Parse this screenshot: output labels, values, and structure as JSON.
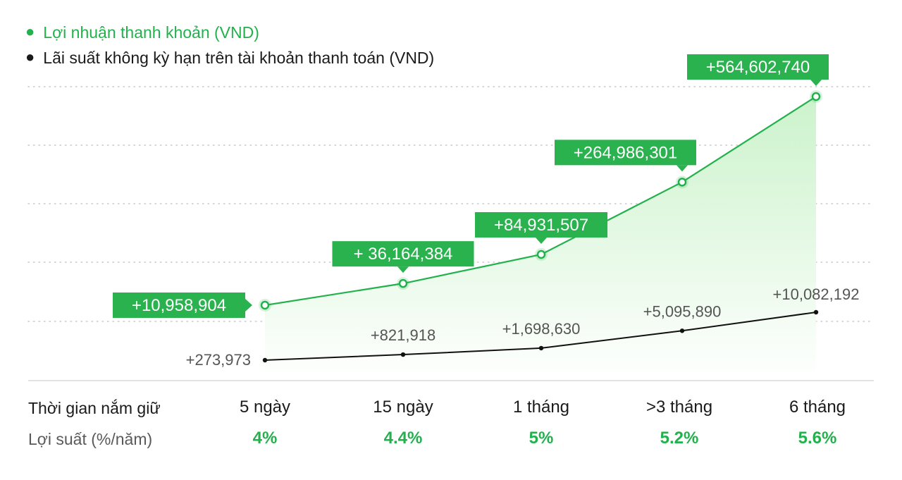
{
  "legend": {
    "series_green": "Lợi nhuận thanh khoản (VND)",
    "series_black": "Lãi suất không kỳ hạn trên tài khoản thanh toán (VND)"
  },
  "colors": {
    "green": "#22b14c",
    "label_green": "#2ab24f",
    "black": "#111111",
    "gray_text": "#555555",
    "area_top": "#c9f2c9"
  },
  "chart_data": {
    "type": "area",
    "categories": [
      "5 ngày",
      "15 ngày",
      "1 tháng",
      ">3 tháng",
      "6 tháng"
    ],
    "series": [
      {
        "name": "Lợi nhuận thanh khoản (VND)",
        "values": [
          10958904,
          36164384,
          84931507,
          264986301,
          564602740
        ],
        "labels": [
          "+10,958,904",
          "+ 36,164,384",
          "+84,931,507",
          "+264,986,301",
          "+564,602,740"
        ]
      },
      {
        "name": "Lãi suất không kỳ hạn trên tài khoản thanh toán (VND)",
        "values": [
          273973,
          821918,
          1698630,
          5095890,
          10082192
        ],
        "labels": [
          "+273,973",
          "+821,918",
          "+1,698,630",
          "+5,095,890",
          "+10,082,192"
        ]
      }
    ],
    "grid": "dotted horizontal",
    "legend_position": "top-left"
  },
  "table": {
    "row1_label": "Thời gian nắm giữ",
    "row2_label": "Lợi suất (%/năm)",
    "periods": [
      "5 ngày",
      "15 ngày",
      "1 tháng",
      ">3 tháng",
      "6 tháng"
    ],
    "rates": [
      "4%",
      "4.4%",
      "5%",
      "5.2%",
      "5.6%"
    ]
  }
}
